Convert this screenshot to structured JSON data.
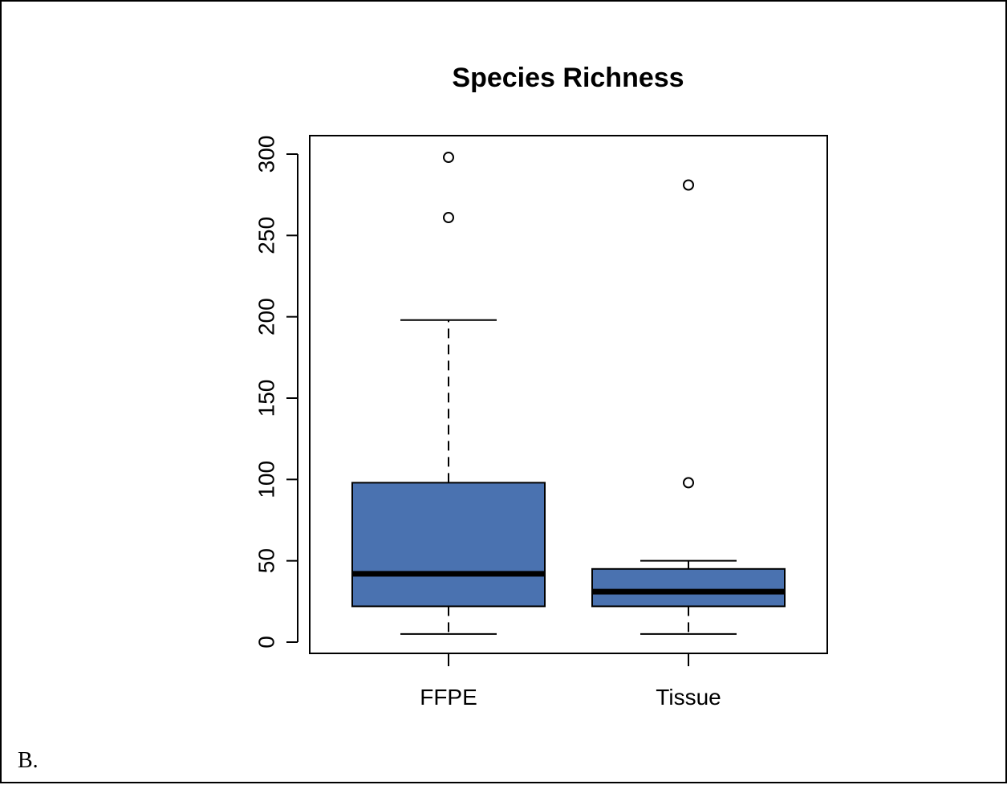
{
  "panel_label": "B.",
  "chart_data": {
    "type": "boxplot",
    "title": "Species Richness",
    "xlabel": "",
    "ylabel": "",
    "ylim": [
      -7,
      312
    ],
    "yticks": [
      0,
      50,
      100,
      150,
      200,
      250,
      300
    ],
    "categories": [
      "FFPE",
      "Tissue"
    ],
    "box_color": "#4a72b0",
    "boxes": [
      {
        "name": "FFPE",
        "whisker_low": 5,
        "q1": 22,
        "median": 42,
        "q3": 98,
        "whisker_high": 198,
        "outliers": [
          298,
          261
        ]
      },
      {
        "name": "Tissue",
        "whisker_low": 5,
        "q1": 22,
        "median": 31,
        "q3": 45,
        "whisker_high": 50,
        "outliers": [
          281,
          98
        ]
      }
    ],
    "grid": false,
    "legend": "none"
  }
}
